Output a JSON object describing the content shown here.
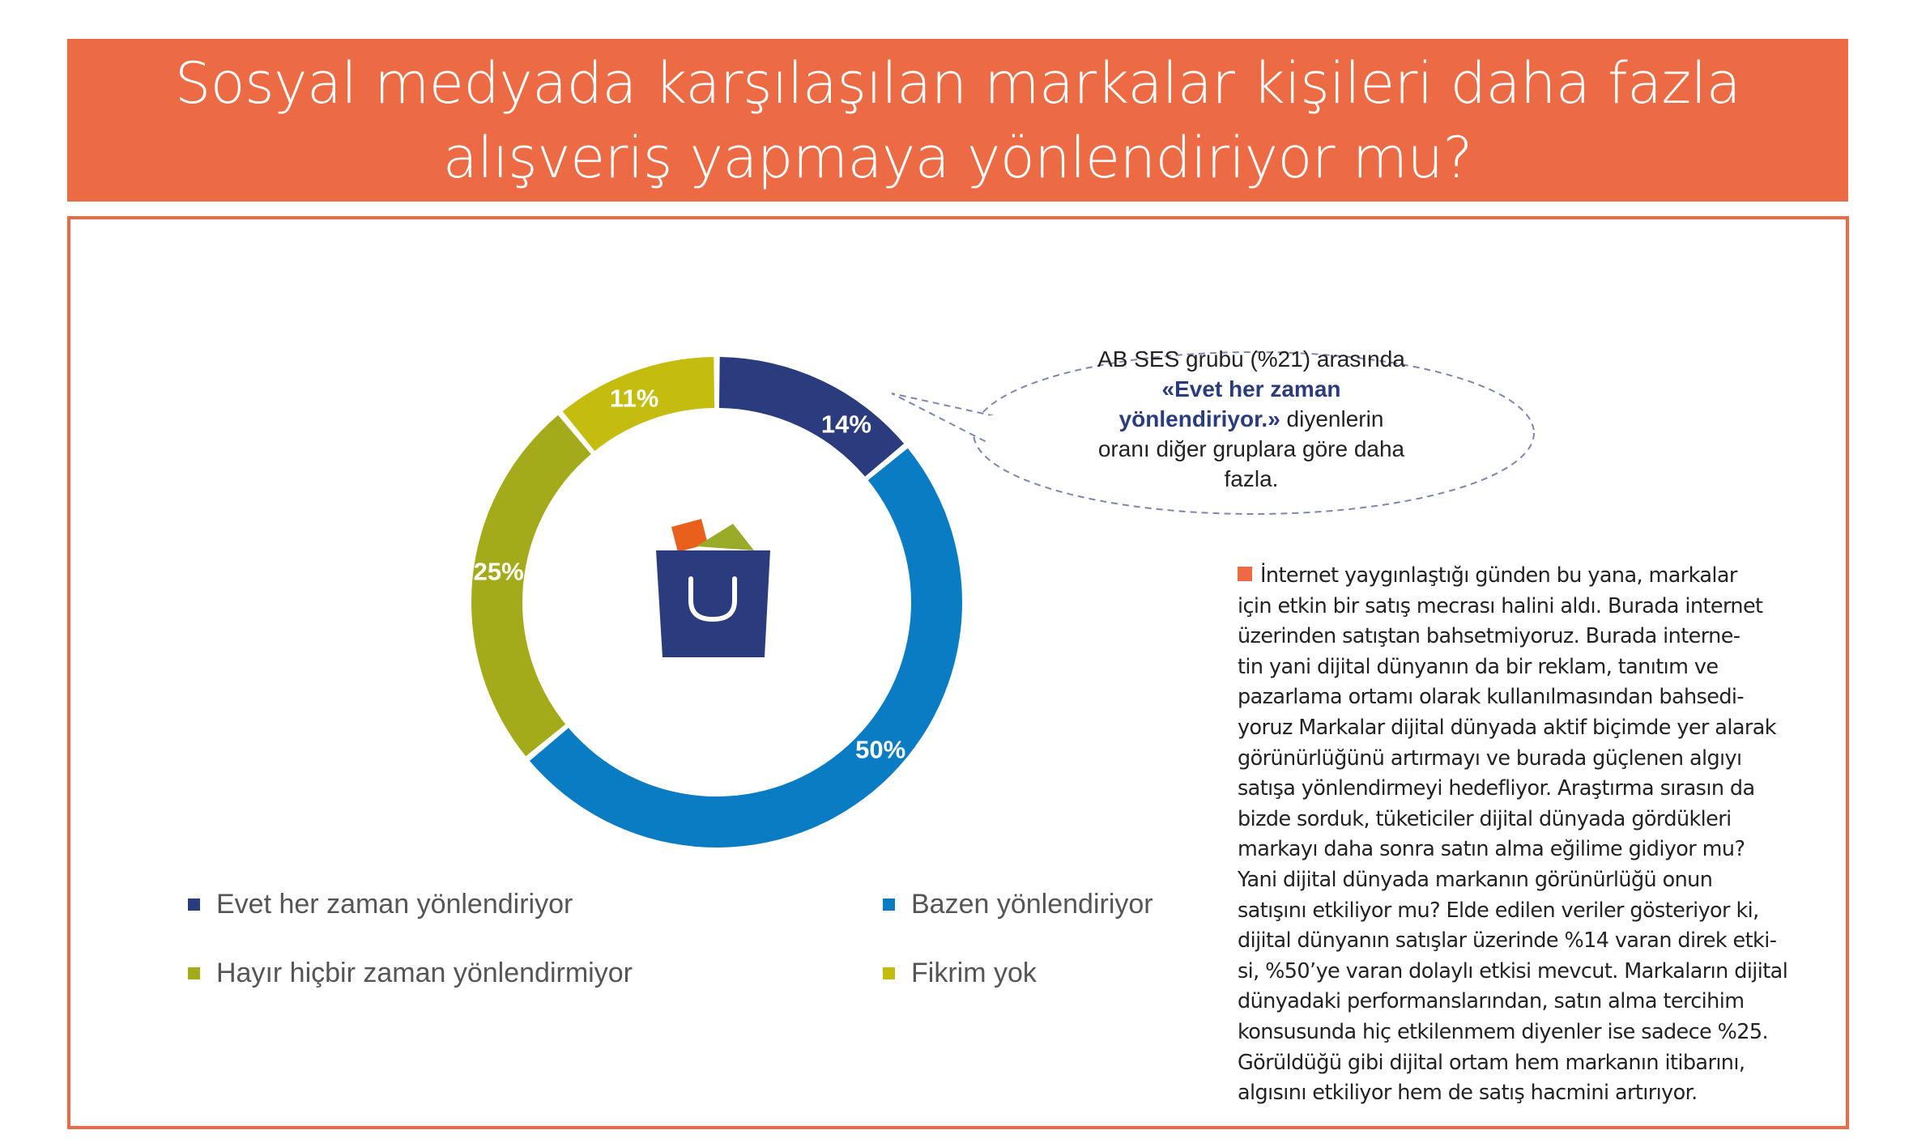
{
  "title": {
    "line1": "Sosyal medyada karşılaşılan markalar kişileri daha fazla",
    "line2": "alışveriş yapmaya yönlendiriyor mu?"
  },
  "colors": {
    "accent": "#ec6b45",
    "evet": "#2b3c7e",
    "bazen": "#0a7cc4",
    "hayir": "#a4ab1b",
    "fikrim_yok": "#c4bc0f"
  },
  "chart_data": {
    "type": "pie",
    "style": "donut",
    "center_icon": "shopping-bag-icon",
    "slices": [
      {
        "label": "Evet her zaman yönlendiriyor",
        "value": 14,
        "display": "14%",
        "color": "#2b3c7e"
      },
      {
        "label": "Bazen yönlendiriyor",
        "value": 50,
        "display": "50%",
        "color": "#0a7cc4"
      },
      {
        "label": "Hayır hiçbir zaman yönlendirmiyor",
        "value": 25,
        "display": "25%",
        "color": "#a4ab1b"
      },
      {
        "label": "Fikrim yok",
        "value": 11,
        "display": "11%",
        "color": "#c4bc0f"
      }
    ],
    "legend_position": "bottom"
  },
  "callout": {
    "line1": "AB SES grubu (%21) arasında",
    "line2": "«Evet her zaman",
    "line3a": "yönlendiriyor.»",
    "line3b": " diyenlerin",
    "line4": "oranı diğer gruplara göre daha",
    "line5": "fazla."
  },
  "body_text": [
    "İnternet yaygınlaştığı günden bu yana, markalar",
    "için etkin bir satış mecrası halini aldı. Burada internet",
    "üzerinden satıştan bahsetmiyoruz. Burada interne-",
    "tin yani dijital dünyanın da bir reklam, tanıtım ve",
    "pazarlama ortamı olarak kullanılmasından bahsedi-",
    "yoruz Markalar dijital dünyada aktif biçimde yer alarak",
    "görünürlüğünü artırmayı ve burada güçlenen algıyı",
    "satışa yönlendirmeyi hedefliyor. Araştırma sırasın da",
    "bizde sorduk, tüketiciler dijital dünyada gördükleri",
    "markayı daha sonra satın alma eğilime gidiyor mu?",
    "Yani dijital dünyada markanın görünürlüğü onun",
    "satışını etkiliyor mu? Elde edilen veriler gösteriyor ki,",
    "dijital dünyanın satışlar üzerinde %14 varan direk etki-",
    "si, %50’ye varan dolaylı etkisi mevcut. Markaların dijital",
    "dünyadaki performanslarından, satın alma tercihim",
    "konsusunda hiç etkilenmem diyenler ise sadece %25.",
    "Görüldüğü gibi dijital ortam hem markanın itibarını,",
    "algısını etkiliyor hem de satış hacmini artırıyor."
  ]
}
